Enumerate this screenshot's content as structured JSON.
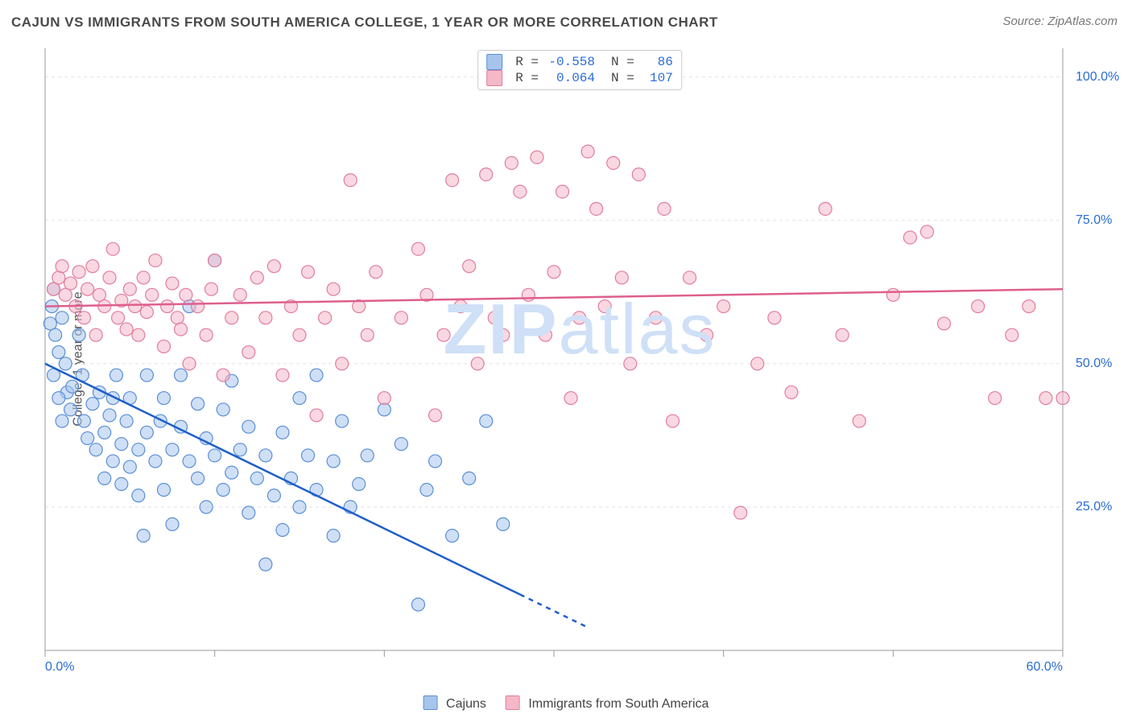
{
  "title": "CAJUN VS IMMIGRANTS FROM SOUTH AMERICA COLLEGE, 1 YEAR OR MORE CORRELATION CHART",
  "source": "Source: ZipAtlas.com",
  "ylabel": "College, 1 year or more",
  "watermark": "ZIPatlas",
  "chart": {
    "type": "scatter",
    "xlim": [
      0,
      60
    ],
    "ylim": [
      0,
      105
    ],
    "xticks": [
      0,
      10,
      20,
      30,
      40,
      50,
      60
    ],
    "xtick_labels": [
      "0.0%",
      "",
      "",
      "",
      "",
      "",
      "60.0%"
    ],
    "yticks": [
      25,
      50,
      75,
      100
    ],
    "ytick_labels": [
      "25.0%",
      "50.0%",
      "75.0%",
      "100.0%"
    ],
    "background_color": "#ffffff",
    "grid_color": "#e3e3e3",
    "grid_dash": "4 4",
    "axis_color": "#999999",
    "marker_radius": 8,
    "marker_stroke_width": 1.2,
    "trend_line_width": 2.5,
    "series": [
      {
        "name": "Cajuns",
        "fill": "#a7c5ec",
        "fill_opacity": 0.55,
        "stroke": "#5a8fd6",
        "trend_color": "#1f5fc9",
        "r": "-0.558",
        "n": "86",
        "trend": {
          "x1": 0,
          "y1": 50,
          "x2": 32,
          "y2": 4
        },
        "trend_dash_from_x": 28,
        "points": [
          [
            0.3,
            57
          ],
          [
            0.4,
            60
          ],
          [
            0.5,
            63
          ],
          [
            0.6,
            55
          ],
          [
            0.8,
            52
          ],
          [
            0.5,
            48
          ],
          [
            1.0,
            58
          ],
          [
            1.2,
            50
          ],
          [
            1.3,
            45
          ],
          [
            1.5,
            42
          ],
          [
            1.0,
            40
          ],
          [
            0.8,
            44
          ],
          [
            1.6,
            46
          ],
          [
            2.0,
            55
          ],
          [
            2.2,
            48
          ],
          [
            2.5,
            37
          ],
          [
            2.3,
            40
          ],
          [
            2.8,
            43
          ],
          [
            3.0,
            35
          ],
          [
            3.2,
            45
          ],
          [
            3.5,
            30
          ],
          [
            3.5,
            38
          ],
          [
            3.8,
            41
          ],
          [
            4.0,
            33
          ],
          [
            4.0,
            44
          ],
          [
            4.2,
            48
          ],
          [
            4.5,
            36
          ],
          [
            4.5,
            29
          ],
          [
            4.8,
            40
          ],
          [
            5.0,
            32
          ],
          [
            5.0,
            44
          ],
          [
            5.5,
            35
          ],
          [
            5.5,
            27
          ],
          [
            5.8,
            20
          ],
          [
            6.0,
            38
          ],
          [
            6.0,
            48
          ],
          [
            6.5,
            33
          ],
          [
            6.8,
            40
          ],
          [
            7.0,
            28
          ],
          [
            7.0,
            44
          ],
          [
            7.5,
            35
          ],
          [
            7.5,
            22
          ],
          [
            8.0,
            39
          ],
          [
            8.0,
            48
          ],
          [
            8.5,
            33
          ],
          [
            8.5,
            60
          ],
          [
            9.0,
            30
          ],
          [
            9.0,
            43
          ],
          [
            9.5,
            37
          ],
          [
            9.5,
            25
          ],
          [
            10.0,
            68
          ],
          [
            10.0,
            34
          ],
          [
            10.5,
            28
          ],
          [
            10.5,
            42
          ],
          [
            11.0,
            31
          ],
          [
            11.0,
            47
          ],
          [
            11.5,
            35
          ],
          [
            12.0,
            24
          ],
          [
            12.0,
            39
          ],
          [
            12.5,
            30
          ],
          [
            13.0,
            34
          ],
          [
            13.0,
            15
          ],
          [
            13.5,
            27
          ],
          [
            14.0,
            38
          ],
          [
            14.0,
            21
          ],
          [
            14.5,
            30
          ],
          [
            15.0,
            44
          ],
          [
            15.0,
            25
          ],
          [
            15.5,
            34
          ],
          [
            16.0,
            28
          ],
          [
            16.0,
            48
          ],
          [
            17.0,
            20
          ],
          [
            17.0,
            33
          ],
          [
            17.5,
            40
          ],
          [
            18.0,
            25
          ],
          [
            18.5,
            29
          ],
          [
            19.0,
            34
          ],
          [
            20.0,
            42
          ],
          [
            21.0,
            36
          ],
          [
            22.0,
            8
          ],
          [
            22.5,
            28
          ],
          [
            23.0,
            33
          ],
          [
            24.0,
            20
          ],
          [
            25.0,
            30
          ],
          [
            26.0,
            40
          ],
          [
            27.0,
            22
          ]
        ]
      },
      {
        "name": "Immigrants from South America",
        "fill": "#f4b8c8",
        "fill_opacity": 0.55,
        "stroke": "#e17ca0",
        "trend_color": "#de5f8d",
        "r": "0.064",
        "n": "107",
        "trend": {
          "x1": 0,
          "y1": 60,
          "x2": 60,
          "y2": 63
        },
        "points": [
          [
            0.5,
            63
          ],
          [
            0.8,
            65
          ],
          [
            1.0,
            67
          ],
          [
            1.2,
            62
          ],
          [
            1.5,
            64
          ],
          [
            1.8,
            60
          ],
          [
            2.0,
            66
          ],
          [
            2.3,
            58
          ],
          [
            2.5,
            63
          ],
          [
            2.8,
            67
          ],
          [
            3.0,
            55
          ],
          [
            3.2,
            62
          ],
          [
            3.5,
            60
          ],
          [
            3.8,
            65
          ],
          [
            4.0,
            70
          ],
          [
            4.3,
            58
          ],
          [
            4.5,
            61
          ],
          [
            4.8,
            56
          ],
          [
            5.0,
            63
          ],
          [
            5.3,
            60
          ],
          [
            5.5,
            55
          ],
          [
            5.8,
            65
          ],
          [
            6.0,
            59
          ],
          [
            6.3,
            62
          ],
          [
            6.5,
            68
          ],
          [
            7.0,
            53
          ],
          [
            7.2,
            60
          ],
          [
            7.5,
            64
          ],
          [
            7.8,
            58
          ],
          [
            8.0,
            56
          ],
          [
            8.3,
            62
          ],
          [
            8.5,
            50
          ],
          [
            9.0,
            60
          ],
          [
            9.5,
            55
          ],
          [
            9.8,
            63
          ],
          [
            10.0,
            68
          ],
          [
            10.5,
            48
          ],
          [
            11.0,
            58
          ],
          [
            11.5,
            62
          ],
          [
            12.0,
            52
          ],
          [
            12.5,
            65
          ],
          [
            13.0,
            58
          ],
          [
            13.5,
            67
          ],
          [
            14.0,
            48
          ],
          [
            14.5,
            60
          ],
          [
            15.0,
            55
          ],
          [
            15.5,
            66
          ],
          [
            16.0,
            41
          ],
          [
            16.5,
            58
          ],
          [
            17.0,
            63
          ],
          [
            17.5,
            50
          ],
          [
            18.0,
            82
          ],
          [
            18.5,
            60
          ],
          [
            19.0,
            55
          ],
          [
            19.5,
            66
          ],
          [
            20.0,
            44
          ],
          [
            21.0,
            58
          ],
          [
            22.0,
            70
          ],
          [
            22.5,
            62
          ],
          [
            23.0,
            41
          ],
          [
            23.5,
            55
          ],
          [
            24.0,
            82
          ],
          [
            24.5,
            60
          ],
          [
            25.0,
            67
          ],
          [
            25.5,
            50
          ],
          [
            26.0,
            83
          ],
          [
            26.5,
            58
          ],
          [
            27.0,
            55
          ],
          [
            27.5,
            85
          ],
          [
            28.0,
            80
          ],
          [
            28.5,
            62
          ],
          [
            29.0,
            86
          ],
          [
            29.5,
            55
          ],
          [
            30.0,
            66
          ],
          [
            30.5,
            80
          ],
          [
            31.0,
            44
          ],
          [
            31.5,
            58
          ],
          [
            32.0,
            87
          ],
          [
            32.5,
            77
          ],
          [
            33.0,
            60
          ],
          [
            33.5,
            85
          ],
          [
            34.0,
            65
          ],
          [
            34.5,
            50
          ],
          [
            35.0,
            83
          ],
          [
            36.0,
            58
          ],
          [
            36.5,
            77
          ],
          [
            37.0,
            40
          ],
          [
            38.0,
            65
          ],
          [
            39.0,
            55
          ],
          [
            40.0,
            60
          ],
          [
            41.0,
            24
          ],
          [
            42.0,
            50
          ],
          [
            43.0,
            58
          ],
          [
            44.0,
            45
          ],
          [
            46.0,
            77
          ],
          [
            47.0,
            55
          ],
          [
            48.0,
            40
          ],
          [
            50.0,
            62
          ],
          [
            51.0,
            72
          ],
          [
            52.0,
            73
          ],
          [
            53.0,
            57
          ],
          [
            55.0,
            60
          ],
          [
            56.0,
            44
          ],
          [
            57.0,
            55
          ],
          [
            58.0,
            60
          ],
          [
            59.0,
            44
          ],
          [
            60.0,
            44
          ]
        ]
      }
    ]
  }
}
